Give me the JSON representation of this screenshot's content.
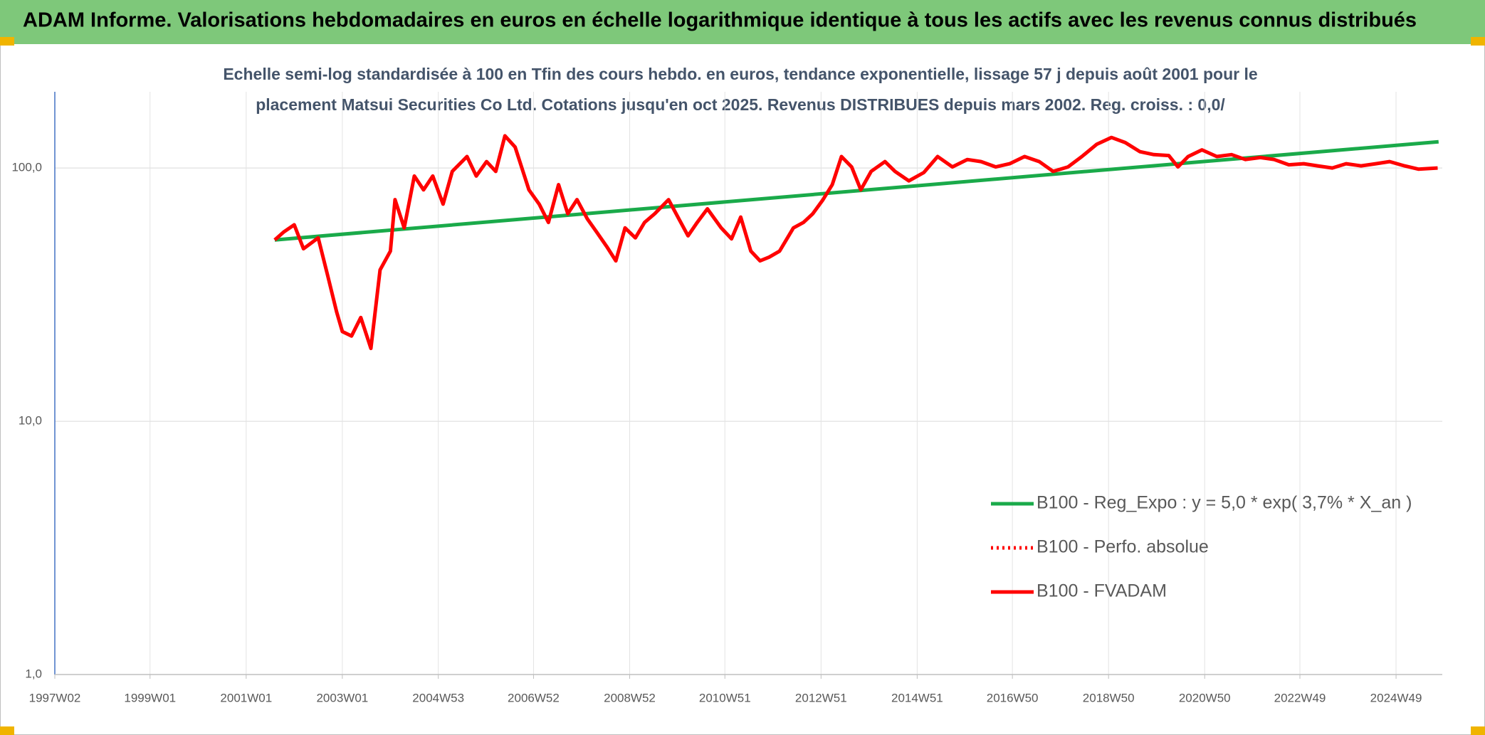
{
  "header": {
    "title": "ADAM Informe. Valorisations hebdomadaires en euros en échelle logarithmique identique à tous les actifs avec les revenus connus distribués"
  },
  "chart_data": {
    "type": "line",
    "title": [
      "Echelle semi-log standardisée à 100 en Tfin des cours hebdo. en euros, tendance exponentielle, lissage 57 j depuis août 2001 pour le",
      "placement Matsui Securities Co Ltd. Cotations jusqu'en oct 2025. Revenus DISTRIBUES depuis mars 2002. Reg. croiss. : 0,0/"
    ],
    "log_y": true,
    "grid": true,
    "legend": "lower right",
    "xlim": [
      "1997W02",
      "2025W47"
    ],
    "xticks": [
      "1997W02",
      "1999W01",
      "2001W01",
      "2003W01",
      "2004W53",
      "2006W52",
      "2008W52",
      "2010W51",
      "2012W51",
      "2014W51",
      "2016W50",
      "2018W50",
      "2020W50",
      "2022W49",
      "2024W49"
    ],
    "ylim": [
      1,
      200
    ],
    "yticks": [
      {
        "value": 1,
        "label": "1,0"
      },
      {
        "value": 10,
        "label": "10,0"
      },
      {
        "value": 100,
        "label": "100,0"
      }
    ],
    "series": [
      {
        "name": "B100 - Reg_Expo : y = 5,0 * exp( 3,7% *  X_an )",
        "color": "#1aaa4a",
        "style": "solid",
        "x": [
          "2001W32",
          "2025W43"
        ],
        "values": [
          52,
          127
        ]
      },
      {
        "name": "B100 - Perfo. absolue",
        "color": "#ff0000",
        "style": "dotted",
        "x": [],
        "values": []
      },
      {
        "name": "B100 - FVADAM",
        "color": "#ff0000",
        "style": "solid",
        "x": [
          "2001W32",
          "2001W42",
          "2002W01",
          "2002W11",
          "2002W27",
          "2002W37",
          "2002W47",
          "2003W01",
          "2003W11",
          "2003W21",
          "2003W32",
          "2003W42",
          "2004W01",
          "2004W06",
          "2004W16",
          "2004W27",
          "2004W37",
          "2004W47",
          "2005W06",
          "2005W16",
          "2005W32",
          "2005W42",
          "2006W01",
          "2006W11",
          "2006W21",
          "2006W32",
          "2006W47",
          "2007W06",
          "2007W16",
          "2007W27",
          "2007W37",
          "2007W47",
          "2008W06",
          "2008W16",
          "2008W27",
          "2008W37",
          "2008W47",
          "2009W06",
          "2009W16",
          "2009W27",
          "2009W42",
          "2010W01",
          "2010W11",
          "2010W21",
          "2010W32",
          "2010W47",
          "2011W06",
          "2011W16",
          "2011W27",
          "2011W37",
          "2011W47",
          "2012W06",
          "2012W21",
          "2012W32",
          "2012W42",
          "2013W01",
          "2013W11",
          "2013W21",
          "2013W32",
          "2013W42",
          "2014W01",
          "2014W16",
          "2014W27",
          "2014W42",
          "2015W06",
          "2015W21",
          "2015W37",
          "2016W01",
          "2016W16",
          "2016W32",
          "2016W47",
          "2017W11",
          "2017W27",
          "2017W42",
          "2018W06",
          "2018W21",
          "2018W37",
          "2019W01",
          "2019W16",
          "2019W32",
          "2019W47",
          "2020W11",
          "2020W21",
          "2020W32",
          "2020W47",
          "2021W11",
          "2021W27",
          "2021W42",
          "2022W06",
          "2022W21",
          "2022W37",
          "2023W01",
          "2023W16",
          "2023W32",
          "2023W47",
          "2024W11",
          "2024W27",
          "2024W42",
          "2025W06",
          "2025W21",
          "2025W42"
        ],
        "values": [
          52,
          56,
          59.7,
          48,
          53,
          38,
          27,
          22.6,
          21.7,
          25.7,
          19.4,
          39.6,
          47,
          75,
          58,
          93,
          82,
          93,
          72,
          97,
          111,
          93,
          106,
          97,
          134,
          121,
          82,
          72,
          61,
          86,
          66,
          75,
          63,
          56,
          49,
          43,
          58,
          53,
          61,
          66,
          75,
          63,
          54,
          61,
          69,
          58,
          52.5,
          64,
          47,
          43,
          44.5,
          47,
          58,
          61,
          66,
          75,
          86,
          111,
          101,
          82,
          97,
          106,
          97,
          89,
          96,
          111,
          101,
          108,
          106,
          101,
          104,
          111,
          106,
          97,
          101,
          111,
          124,
          132,
          126,
          116,
          113,
          112,
          101,
          111,
          118,
          111,
          113,
          108,
          110,
          108,
          103,
          104,
          102,
          100,
          104,
          102,
          104,
          106,
          102,
          99,
          100
        ]
      }
    ]
  }
}
